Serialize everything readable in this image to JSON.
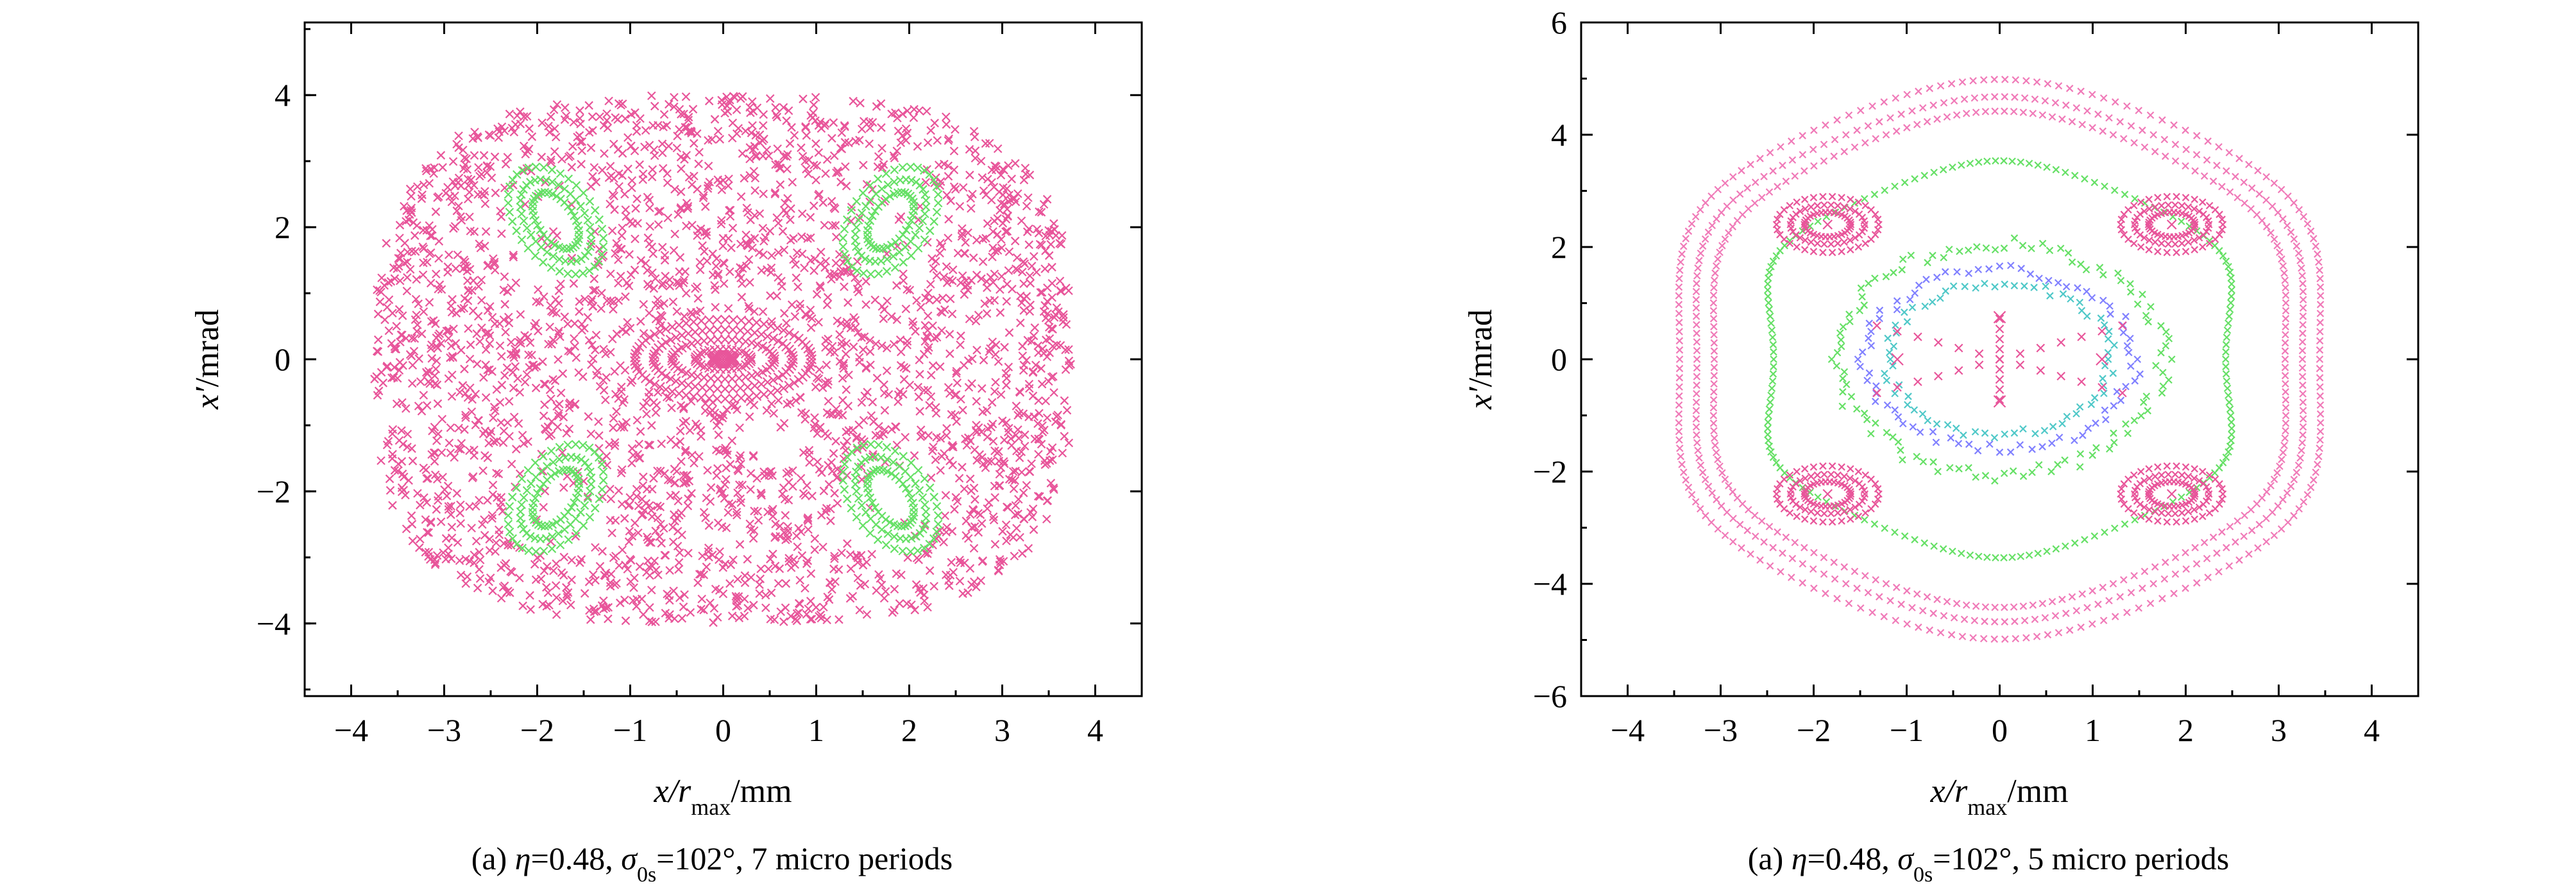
{
  "chart_data": [
    {
      "type": "scatter",
      "xlabel": {
        "main": "x",
        "mid": "/r",
        "sub": "max",
        "tail": "/mm"
      },
      "ylabel": {
        "main": "x′",
        "tail": "/mrad"
      },
      "xlim": [
        -4.5,
        4.5
      ],
      "ylim": [
        -5.1,
        5.1
      ],
      "xticks": [
        -4,
        -3,
        -2,
        -1,
        0,
        1,
        2,
        3,
        4
      ],
      "yticks": [
        -4,
        -2,
        0,
        2,
        4
      ],
      "xtick_labels": [
        "−4",
        "−3",
        "−2",
        "−1",
        "0",
        "1",
        "2",
        "3",
        "4"
      ],
      "ytick_labels": [
        "−4",
        "−2",
        "0",
        "2",
        "4"
      ],
      "grid": false,
      "caption": {
        "prefix": "(a) ",
        "eta": "η",
        "eta_val": "=0.48, ",
        "sigma": "σ",
        "sigma_sub": "0s",
        "tail": "=102°, 7 micro periods"
      },
      "series": [
        {
          "color": "#e8559a",
          "kind": "chaotic-sea",
          "x_extent": [
            -3.7,
            3.7
          ],
          "y_extent": [
            -4.0,
            4.0
          ]
        },
        {
          "color": "#e8559a",
          "kind": "central-ellipses",
          "center": [
            0,
            0
          ],
          "semi_axes": [
            [
              0.95,
              0.6
            ],
            [
              0.75,
              0.45
            ],
            [
              0.55,
              0.3
            ],
            [
              0.3,
              0.15
            ]
          ]
        },
        {
          "color": "#66e066",
          "kind": "islands",
          "centers": [
            [
              -1.8,
              2.1
            ],
            [
              1.8,
              2.1
            ],
            [
              -1.8,
              -2.1
            ],
            [
              1.8,
              -2.1
            ]
          ]
        }
      ]
    },
    {
      "type": "scatter",
      "xlabel": {
        "main": "x",
        "mid": "/r",
        "sub": "max",
        "tail": "/mm"
      },
      "ylabel": {
        "main": "x′",
        "tail": "/mrad"
      },
      "xlim": [
        -4.5,
        4.5
      ],
      "ylim": [
        -6,
        6
      ],
      "xticks": [
        -4,
        -3,
        -2,
        -1,
        0,
        1,
        2,
        3,
        4
      ],
      "yticks": [
        -6,
        -4,
        -2,
        0,
        2,
        4,
        6
      ],
      "xtick_labels": [
        "−4",
        "−3",
        "−2",
        "−1",
        "0",
        "1",
        "2",
        "3",
        "4"
      ],
      "ytick_labels": [
        "−6",
        "−4",
        "−2",
        "0",
        "2",
        "4",
        "6"
      ],
      "grid": false,
      "caption": {
        "prefix": "(a) ",
        "eta": "η",
        "eta_val": "=0.48, ",
        "sigma": "σ",
        "sigma_sub": "0s",
        "tail": "=102°, 5 micro periods"
      },
      "series": [
        {
          "color": "#f07ab8",
          "kind": "outer-invariant-curves",
          "radii": [
            [
              3.3,
              4.3
            ],
            [
              3.5,
              4.55
            ],
            [
              3.7,
              4.85
            ]
          ]
        },
        {
          "color": "#66e066",
          "kind": "separatrix",
          "radii": [
            2.7,
            3.4
          ]
        },
        {
          "color": "#e8559a",
          "kind": "islands",
          "centers": [
            [
              -1.85,
              2.4
            ],
            [
              1.85,
              2.4
            ],
            [
              -1.85,
              -2.4
            ],
            [
              1.85,
              -2.4
            ]
          ]
        },
        {
          "color": "#66e066",
          "kind": "inner-ring",
          "radii": [
            1.75,
            2.05
          ]
        },
        {
          "color": "#8080ff",
          "kind": "inner-ring",
          "radii": [
            1.45,
            1.6
          ]
        },
        {
          "color": "#4fc8c8",
          "kind": "inner-ring",
          "radii": [
            1.2,
            1.35
          ]
        },
        {
          "color": "#e8559a",
          "kind": "central-x",
          "center": [
            0,
            0
          ]
        }
      ]
    }
  ]
}
